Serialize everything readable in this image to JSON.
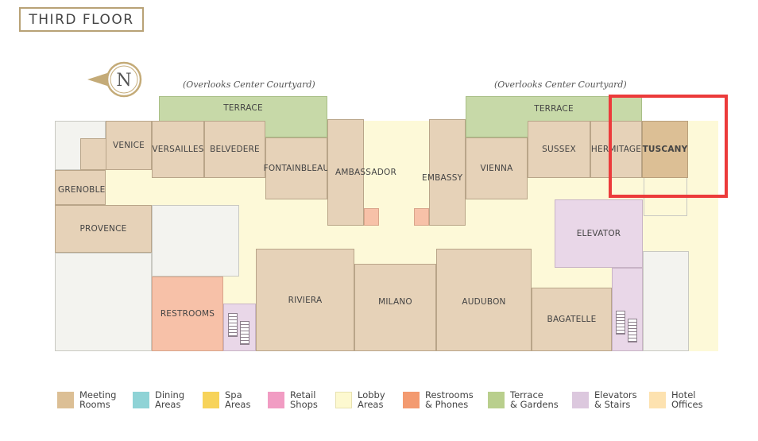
{
  "title": "THIRD FLOOR",
  "compass": {
    "letter": "N"
  },
  "overlooks": [
    "(Overlooks Center Courtyard)",
    "(Overlooks Center Courtyard)"
  ],
  "rooms": {
    "terrace_left": "TERRACE",
    "terrace_right": "TERRACE",
    "venice": "VENICE",
    "versailles": "VERSAILLES",
    "belvedere": "BELVEDERE",
    "fontainbleau": "FONTAINBLEAU",
    "ambassador": "AMBASSADOR",
    "embassy": "EMBASSY",
    "vienna": "VIENNA",
    "sussex": "SUSSEX",
    "hermitage": "HERMITAGE",
    "tuscany": "TUSCANY",
    "grenoble": "GRENOBLE",
    "provence": "PROVENCE",
    "elevator": "ELEVATOR",
    "restrooms": "RESTROOMS",
    "riviera": "RIVIERA",
    "milano": "MILANO",
    "audubon": "AUDUBON",
    "bagatelle": "BAGATELLE"
  },
  "legend": [
    {
      "line1": "Meeting",
      "line2": "Rooms",
      "color": "#dcbf95"
    },
    {
      "line1": "Dining",
      "line2": "Areas",
      "color": "#8fd3d6"
    },
    {
      "line1": "Spa",
      "line2": "Areas",
      "color": "#f7d35a"
    },
    {
      "line1": "Retail",
      "line2": "Shops",
      "color": "#f19cc3"
    },
    {
      "line1": "Lobby",
      "line2": "Areas",
      "color": "#fdf9d0"
    },
    {
      "line1": "Restrooms",
      "line2": "& Phones",
      "color": "#f39a70"
    },
    {
      "line1": "Terrace",
      "line2": "& Gardens",
      "color": "#b9cf8d"
    },
    {
      "line1": "Elevators",
      "line2": "& Stairs",
      "color": "#dcc8de"
    },
    {
      "line1": "Hotel",
      "line2": "Offices",
      "color": "#fde2b0"
    }
  ],
  "highlight": {
    "target": "TUSCANY",
    "color": "#ec3b3b"
  }
}
